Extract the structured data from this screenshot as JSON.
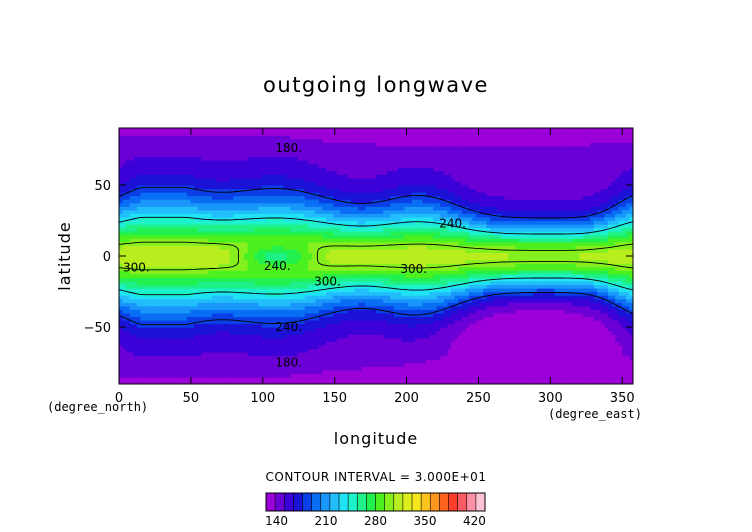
{
  "chart_data": {
    "type": "heatmap",
    "title": "outgoing longwave",
    "xlabel": "longitude",
    "ylabel": "latitude",
    "x_unit": "(degree_east)",
    "y_unit": "(degree_north)",
    "xlim": [
      0,
      357.5
    ],
    "ylim": [
      -90,
      90
    ],
    "x_ticks": [
      0,
      50,
      100,
      150,
      200,
      250,
      300,
      350
    ],
    "y_ticks": [
      -50,
      0,
      50
    ],
    "contour_levels": [
      180,
      240,
      300
    ],
    "contour_labels": [
      {
        "text": "180.",
        "x": 118,
        "y": 76
      },
      {
        "text": "240.",
        "x": 232,
        "y": 23
      },
      {
        "text": "240.",
        "x": 110,
        "y": -7
      },
      {
        "text": "300.",
        "x": 12,
        "y": -8
      },
      {
        "text": "300.",
        "x": 145,
        "y": -18
      },
      {
        "text": "300.",
        "x": 205,
        "y": -9
      },
      {
        "text": "240.",
        "x": 118,
        "y": -50
      },
      {
        "text": "180.",
        "x": 118,
        "y": -75
      }
    ],
    "contour_interval_text": "CONTOUR INTERVAL = 3.000E+01",
    "colorbar": {
      "ticks": [
        "140",
        "210",
        "280",
        "350",
        "420"
      ],
      "min": 125,
      "max": 435,
      "colors": [
        "#9b00d8",
        "#6a00d6",
        "#3c00d8",
        "#1b12d6",
        "#0b3fe6",
        "#0a6ef4",
        "#1896fa",
        "#22bdfb",
        "#1fe2f2",
        "#1ef2c8",
        "#1ef08a",
        "#22f04e",
        "#4cf01e",
        "#86f01e",
        "#b8ee1e",
        "#dcee1e",
        "#f6e61e",
        "#fcc21e",
        "#fc961e",
        "#fc641e",
        "#fc3e2a",
        "#fc5a64",
        "#fc90a4",
        "#fcc2d6"
      ]
    }
  }
}
